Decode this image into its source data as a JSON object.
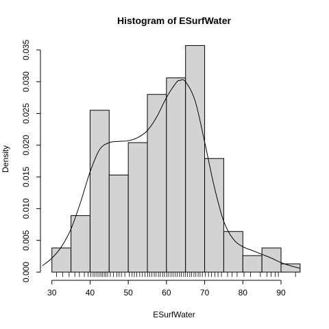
{
  "chart_data": {
    "type": "bar",
    "title": "Histogram of ESurfWater",
    "xlabel": "ESurfWater",
    "ylabel": "Density",
    "xlim": [
      27,
      97
    ],
    "ylim": [
      0,
      0.0365
    ],
    "x_ticks": [
      30,
      40,
      50,
      60,
      70,
      80,
      90
    ],
    "y_ticks": [
      0.0,
      0.005,
      0.01,
      0.015,
      0.02,
      0.025,
      0.03,
      0.035
    ],
    "y_tick_labels": [
      "0.000",
      "0.005",
      "0.010",
      "0.015",
      "0.020",
      "0.025",
      "0.030",
      "0.035"
    ],
    "bins": [
      {
        "start": 30,
        "end": 35,
        "density": 0.0038
      },
      {
        "start": 35,
        "end": 40,
        "density": 0.0089
      },
      {
        "start": 40,
        "end": 45,
        "density": 0.0255
      },
      {
        "start": 45,
        "end": 50,
        "density": 0.0153
      },
      {
        "start": 50,
        "end": 55,
        "density": 0.0204
      },
      {
        "start": 55,
        "end": 60,
        "density": 0.028
      },
      {
        "start": 60,
        "end": 65,
        "density": 0.0306
      },
      {
        "start": 65,
        "end": 70,
        "density": 0.0357
      },
      {
        "start": 70,
        "end": 75,
        "density": 0.0179
      },
      {
        "start": 75,
        "end": 80,
        "density": 0.0064
      },
      {
        "start": 80,
        "end": 85,
        "density": 0.0026
      },
      {
        "start": 85,
        "end": 90,
        "density": 0.0038
      },
      {
        "start": 90,
        "end": 95,
        "density": 0.0013
      }
    ],
    "density_curve": {
      "x": [
        27.5,
        30,
        32.5,
        35,
        37.5,
        40,
        42.5,
        45,
        47.5,
        50,
        52.5,
        55,
        57.5,
        60,
        62.5,
        63.5,
        65,
        67.5,
        70,
        72.5,
        75,
        77.5,
        80,
        82.5,
        85,
        87.5,
        90,
        92.5,
        95
      ],
      "y": [
        0.001,
        0.0022,
        0.004,
        0.0068,
        0.011,
        0.0158,
        0.0193,
        0.0204,
        0.0206,
        0.0207,
        0.0212,
        0.0223,
        0.0245,
        0.0275,
        0.0298,
        0.0302,
        0.03,
        0.027,
        0.0205,
        0.0135,
        0.008,
        0.0052,
        0.004,
        0.0034,
        0.0028,
        0.0022,
        0.0015,
        0.001,
        0.0006
      ]
    },
    "rug": [
      31.2,
      32.8,
      34.5,
      36.0,
      37.2,
      38.5,
      39.5,
      40.2,
      40.8,
      41.3,
      41.8,
      42.3,
      42.8,
      43.2,
      43.7,
      44.1,
      44.6,
      45.3,
      46.1,
      47.0,
      47.6,
      48.2,
      49.1,
      50.3,
      51.0,
      51.6,
      52.2,
      53.0,
      53.7,
      54.4,
      55.1,
      55.6,
      56.2,
      56.8,
      57.3,
      57.9,
      58.4,
      59.0,
      59.5,
      60.1,
      60.6,
      61.2,
      61.7,
      62.3,
      62.8,
      63.4,
      63.9,
      64.5,
      65.0,
      65.5,
      66.1,
      66.6,
      67.2,
      67.7,
      68.3,
      68.8,
      69.4,
      70.2,
      71.0,
      71.8,
      72.7,
      73.5,
      74.4,
      76.0,
      77.2,
      78.5,
      80.3,
      82.0,
      84.6,
      86.3,
      87.4,
      88.5,
      89.3,
      93.8
    ],
    "grid": false,
    "legend": "none",
    "colors": {
      "bar_fill": "#d3d3d3",
      "bar_stroke": "#000000",
      "curve": "#000000"
    }
  }
}
